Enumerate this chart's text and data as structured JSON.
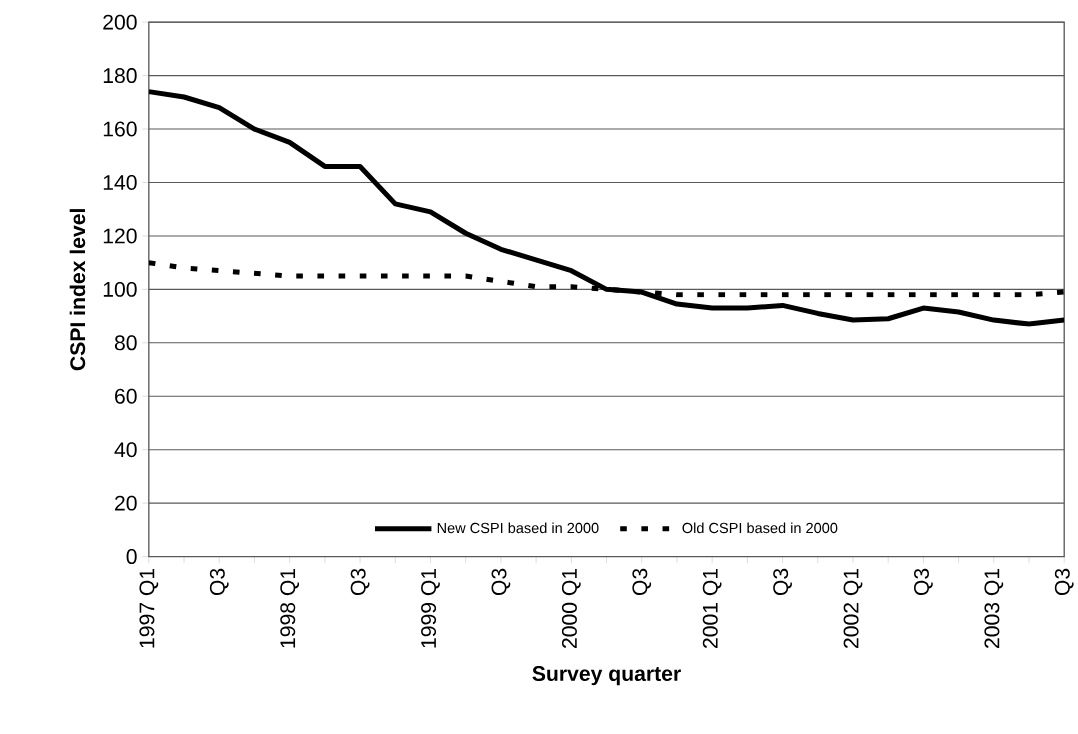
{
  "chart_data": {
    "type": "line",
    "xlabel": "Survey quarter",
    "ylabel": "CSPI index level",
    "categories": [
      "1997 Q1",
      null,
      "Q3",
      null,
      "1998 Q1",
      null,
      "Q3",
      null,
      "1999 Q1",
      null,
      "Q3",
      null,
      "2000 Q1",
      null,
      "Q3",
      null,
      "2001 Q1",
      null,
      "Q3",
      null,
      "2002 Q1",
      null,
      "Q3",
      null,
      "2003 Q1",
      null,
      "Q3"
    ],
    "series": [
      {
        "name": "New CSPI based in 2000",
        "color": "#000000",
        "line_style": "solid",
        "values": [
          174,
          172,
          168,
          160,
          155,
          146,
          146,
          132,
          129,
          121,
          115,
          111,
          107,
          100,
          99,
          94.5,
          93,
          93,
          94,
          91,
          88.5,
          89,
          93,
          91.5,
          88.5,
          87,
          88.5
        ]
      },
      {
        "name": "Old CSPI based in 2000",
        "color": "#000000",
        "line_style": "dotted",
        "values": [
          110,
          108,
          107,
          106,
          105,
          105,
          105,
          105,
          105,
          105,
          103,
          101,
          101,
          100,
          99,
          98,
          98,
          98,
          98,
          98,
          98,
          98,
          98,
          98,
          98,
          98,
          99
        ]
      }
    ],
    "ylim": [
      0,
      200
    ],
    "yticks": [
      0,
      20,
      40,
      60,
      80,
      100,
      120,
      140,
      160,
      180,
      200
    ],
    "grid": "y",
    "legend": "bottom",
    "marker": "none"
  }
}
